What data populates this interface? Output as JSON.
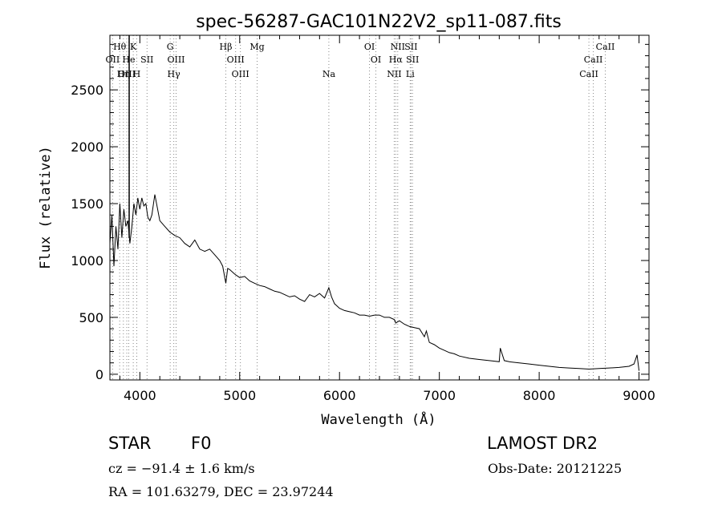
{
  "chart_data": {
    "type": "line",
    "title": "spec-56287-GAC101N22V2_sp11-087.fits",
    "xlabel": "Wavelength (Å)",
    "ylabel": "Flux (relative)",
    "xlim": [
      3700,
      9100
    ],
    "ylim": [
      -50,
      2980
    ],
    "xticks": [
      4000,
      5000,
      6000,
      7000,
      8000,
      9000
    ],
    "yticks": [
      0,
      500,
      1000,
      1500,
      2000,
      2500
    ],
    "grid": false,
    "series": [
      {
        "name": "spectrum",
        "x": [
          3700,
          3720,
          3740,
          3760,
          3780,
          3800,
          3820,
          3840,
          3860,
          3880,
          3900,
          3920,
          3940,
          3960,
          3980,
          4000,
          4020,
          4040,
          4060,
          4080,
          4100,
          4120,
          4150,
          4200,
          4250,
          4300,
          4350,
          4400,
          4450,
          4500,
          4550,
          4600,
          4650,
          4700,
          4750,
          4800,
          4830,
          4861,
          4880,
          4900,
          4950,
          5000,
          5050,
          5100,
          5150,
          5200,
          5250,
          5300,
          5350,
          5400,
          5450,
          5500,
          5550,
          5600,
          5650,
          5700,
          5750,
          5800,
          5850,
          5893,
          5920,
          5950,
          6000,
          6050,
          6100,
          6150,
          6200,
          6250,
          6300,
          6350,
          6400,
          6450,
          6500,
          6550,
          6563,
          6600,
          6650,
          6700,
          6750,
          6800,
          6850,
          6870,
          6900,
          6950,
          7000,
          7050,
          7100,
          7150,
          7200,
          7300,
          7400,
          7500,
          7600,
          7610,
          7650,
          7700,
          7800,
          7900,
          8000,
          8100,
          8200,
          8300,
          8400,
          8500,
          8600,
          8700,
          8800,
          8900,
          8950,
          8980,
          9000
        ],
        "y": [
          1150,
          1400,
          950,
          1300,
          1100,
          1500,
          1200,
          1450,
          1300,
          1350,
          1150,
          1300,
          1500,
          1400,
          1550,
          1450,
          1550,
          1480,
          1500,
          1380,
          1350,
          1400,
          1580,
          1350,
          1300,
          1250,
          1220,
          1200,
          1150,
          1120,
          1180,
          1100,
          1080,
          1100,
          1050,
          1000,
          950,
          800,
          930,
          920,
          880,
          850,
          860,
          820,
          800,
          780,
          770,
          750,
          730,
          720,
          700,
          680,
          690,
          660,
          640,
          700,
          680,
          710,
          670,
          760,
          680,
          620,
          580,
          560,
          550,
          540,
          520,
          520,
          510,
          520,
          520,
          500,
          500,
          480,
          450,
          470,
          440,
          420,
          410,
          400,
          330,
          380,
          280,
          260,
          230,
          210,
          190,
          180,
          160,
          140,
          130,
          120,
          110,
          230,
          120,
          110,
          100,
          90,
          80,
          70,
          60,
          55,
          50,
          45,
          50,
          55,
          60,
          70,
          90,
          170,
          30
        ]
      }
    ],
    "line_annotations": [
      {
        "label": "Hθ",
        "wavelength": 3798,
        "row": 0
      },
      {
        "label": "K",
        "wavelength": 3934,
        "row": 0
      },
      {
        "label": "G",
        "wavelength": 4304,
        "row": 0
      },
      {
        "label": "Hβ",
        "wavelength": 4861,
        "row": 0
      },
      {
        "label": "Mg",
        "wavelength": 5175,
        "row": 0
      },
      {
        "label": "OI",
        "wavelength": 6300,
        "row": 0
      },
      {
        "label": "NII",
        "wavelength": 6583,
        "row": 0
      },
      {
        "label": "SII",
        "wavelength": 6716,
        "row": 0
      },
      {
        "label": "CaII",
        "wavelength": 8662,
        "row": 0
      },
      {
        "label": "OII",
        "wavelength": 3727,
        "row": 1
      },
      {
        "label": "He",
        "wavelength": 3889,
        "row": 1
      },
      {
        "label": "SII",
        "wavelength": 4072,
        "row": 1
      },
      {
        "label": "OIII",
        "wavelength": 4363,
        "row": 1
      },
      {
        "label": "OIII",
        "wavelength": 4959,
        "row": 1
      },
      {
        "label": "OI",
        "wavelength": 6364,
        "row": 1
      },
      {
        "label": "Hα",
        "wavelength": 6563,
        "row": 1
      },
      {
        "label": "SII",
        "wavelength": 6731,
        "row": 1
      },
      {
        "label": "CaII",
        "wavelength": 8542,
        "row": 1
      },
      {
        "label": "OIII",
        "wavelength": 3869,
        "row": 2
      },
      {
        "label": "Hη",
        "wavelength": 3835,
        "row": 2
      },
      {
        "label": "H",
        "wavelength": 3969,
        "row": 2
      },
      {
        "label": "Hγ",
        "wavelength": 4340,
        "row": 2
      },
      {
        "label": "OIII",
        "wavelength": 5007,
        "row": 2
      },
      {
        "label": "Na",
        "wavelength": 5893,
        "row": 2
      },
      {
        "label": "NII",
        "wavelength": 6548,
        "row": 2
      },
      {
        "label": "Li",
        "wavelength": 6708,
        "row": 2
      },
      {
        "label": "CaII",
        "wavelength": 8498,
        "row": 2
      }
    ]
  },
  "info": {
    "class_label": "STAR",
    "subclass": "F0",
    "survey": "LAMOST DR2",
    "redshift": "cz = −91.4 ± 1.6 km/s",
    "obs_date": "Obs-Date: 20121225",
    "coords": "RA = 101.63279, DEC =  23.97244"
  },
  "colors": {
    "line": "#000000",
    "marker_line": "#888888",
    "background": "#ffffff"
  }
}
